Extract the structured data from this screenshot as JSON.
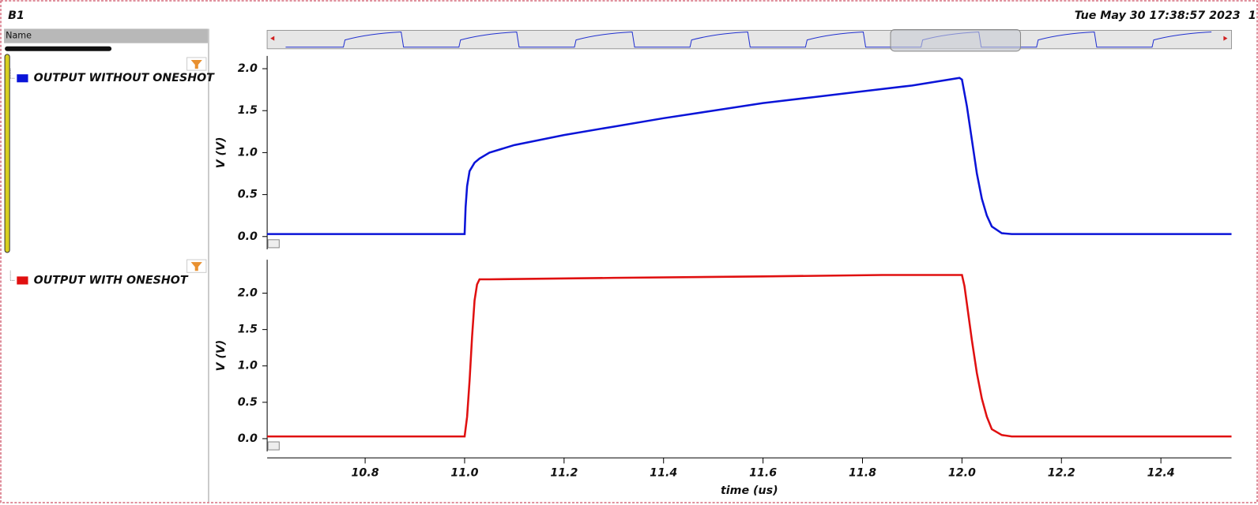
{
  "window_title": "B1",
  "timestamp": "Tue May 30 17:38:57 2023",
  "timestamp_cut": "1",
  "panel_header": "Name",
  "chart_data": [
    {
      "type": "line",
      "ylabel": "V (V)",
      "xlim": [
        10.603,
        12.542
      ],
      "ylim": [
        -0.152,
        2.152
      ],
      "yticks": [
        {
          "value": 0,
          "label": "0.0"
        },
        0.5,
        {
          "value": 1,
          "label": "1.0"
        },
        1.5,
        {
          "value": 2,
          "label": "2.0"
        }
      ],
      "series": [
        {
          "name": "OUTPUT WITHOUT ONESHOT",
          "color": "#0a14d8",
          "x": [
            10.603,
            11.0,
            11.002,
            11.005,
            11.01,
            11.02,
            11.03,
            11.05,
            11.1,
            11.2,
            11.3,
            11.4,
            11.5,
            11.6,
            11.7,
            11.8,
            11.9,
            11.995,
            12.0,
            12.01,
            12.02,
            12.03,
            12.04,
            12.05,
            12.06,
            12.08,
            12.1,
            12.542
          ],
          "values": [
            0.03,
            0.03,
            0.35,
            0.6,
            0.78,
            0.88,
            0.93,
            1.0,
            1.09,
            1.21,
            1.31,
            1.41,
            1.5,
            1.59,
            1.66,
            1.73,
            1.8,
            1.89,
            1.87,
            1.55,
            1.15,
            0.75,
            0.45,
            0.25,
            0.12,
            0.04,
            0.03,
            0.03
          ]
        }
      ]
    },
    {
      "type": "line",
      "ylabel": "V (V)",
      "xlabel": "time (us)",
      "xlim": [
        10.603,
        12.542
      ],
      "ylim": [
        -0.176,
        2.46
      ],
      "xticks": [
        10.8,
        {
          "value": 11,
          "label": "11.0"
        },
        11.2,
        11.4,
        11.6,
        11.8,
        {
          "value": 12,
          "label": "12.0"
        },
        12.2,
        12.4
      ],
      "yticks": [
        {
          "value": 0,
          "label": "0.0"
        },
        0.5,
        {
          "value": 1,
          "label": "1.0"
        },
        1.5,
        {
          "value": 2,
          "label": "2.0"
        }
      ],
      "series": [
        {
          "name": "OUTPUT WITH ONESHOT",
          "color": "#e01010",
          "x": [
            10.603,
            11.0,
            11.005,
            11.01,
            11.015,
            11.02,
            11.025,
            11.03,
            11.05,
            11.3,
            11.6,
            11.84,
            12.0,
            12.005,
            12.01,
            12.02,
            12.03,
            12.04,
            12.05,
            12.06,
            12.08,
            12.1,
            12.542
          ],
          "values": [
            0.03,
            0.03,
            0.3,
            0.8,
            1.4,
            1.9,
            2.12,
            2.19,
            2.19,
            2.21,
            2.23,
            2.25,
            2.25,
            2.1,
            1.85,
            1.35,
            0.9,
            0.55,
            0.3,
            0.13,
            0.05,
            0.03,
            0.03
          ]
        }
      ]
    }
  ]
}
